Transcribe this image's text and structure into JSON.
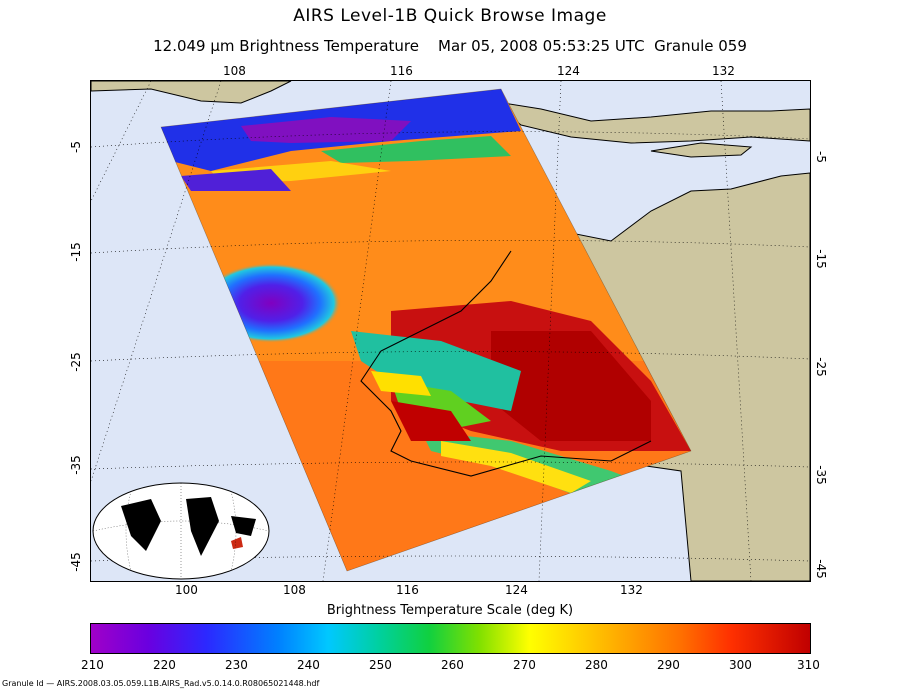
{
  "header": {
    "title": "AIRS Level-1B Quick Browse Image",
    "subtitle": "12.049 μm Brightness Temperature    Mar 05, 2008 05:53:25 UTC  Granule 059"
  },
  "map": {
    "top_lon_labels": [
      "108",
      "116",
      "124",
      "132"
    ],
    "bottom_lon_labels": [
      "100",
      "108",
      "116",
      "124",
      "132"
    ],
    "left_lat_labels": [
      "-5",
      "-15",
      "-25",
      "-35",
      "-45"
    ],
    "right_lat_labels": [
      "-5",
      "-15",
      "-25",
      "-35",
      "-45"
    ],
    "colors": {
      "ocean": "#dde6f7",
      "land": "#cdc6a0"
    }
  },
  "colorbar": {
    "title": "Brightness Temperature Scale (deg K)",
    "tick_labels": [
      "210",
      "220",
      "230",
      "240",
      "250",
      "260",
      "270",
      "280",
      "290",
      "300",
      "310"
    ],
    "min": 210,
    "max": 310
  },
  "footer": {
    "granule_id": "Granule Id — AIRS.2008.03.05.059.L1B.AIRS_Rad.v5.0.14.0.R08065021448.hdf"
  }
}
